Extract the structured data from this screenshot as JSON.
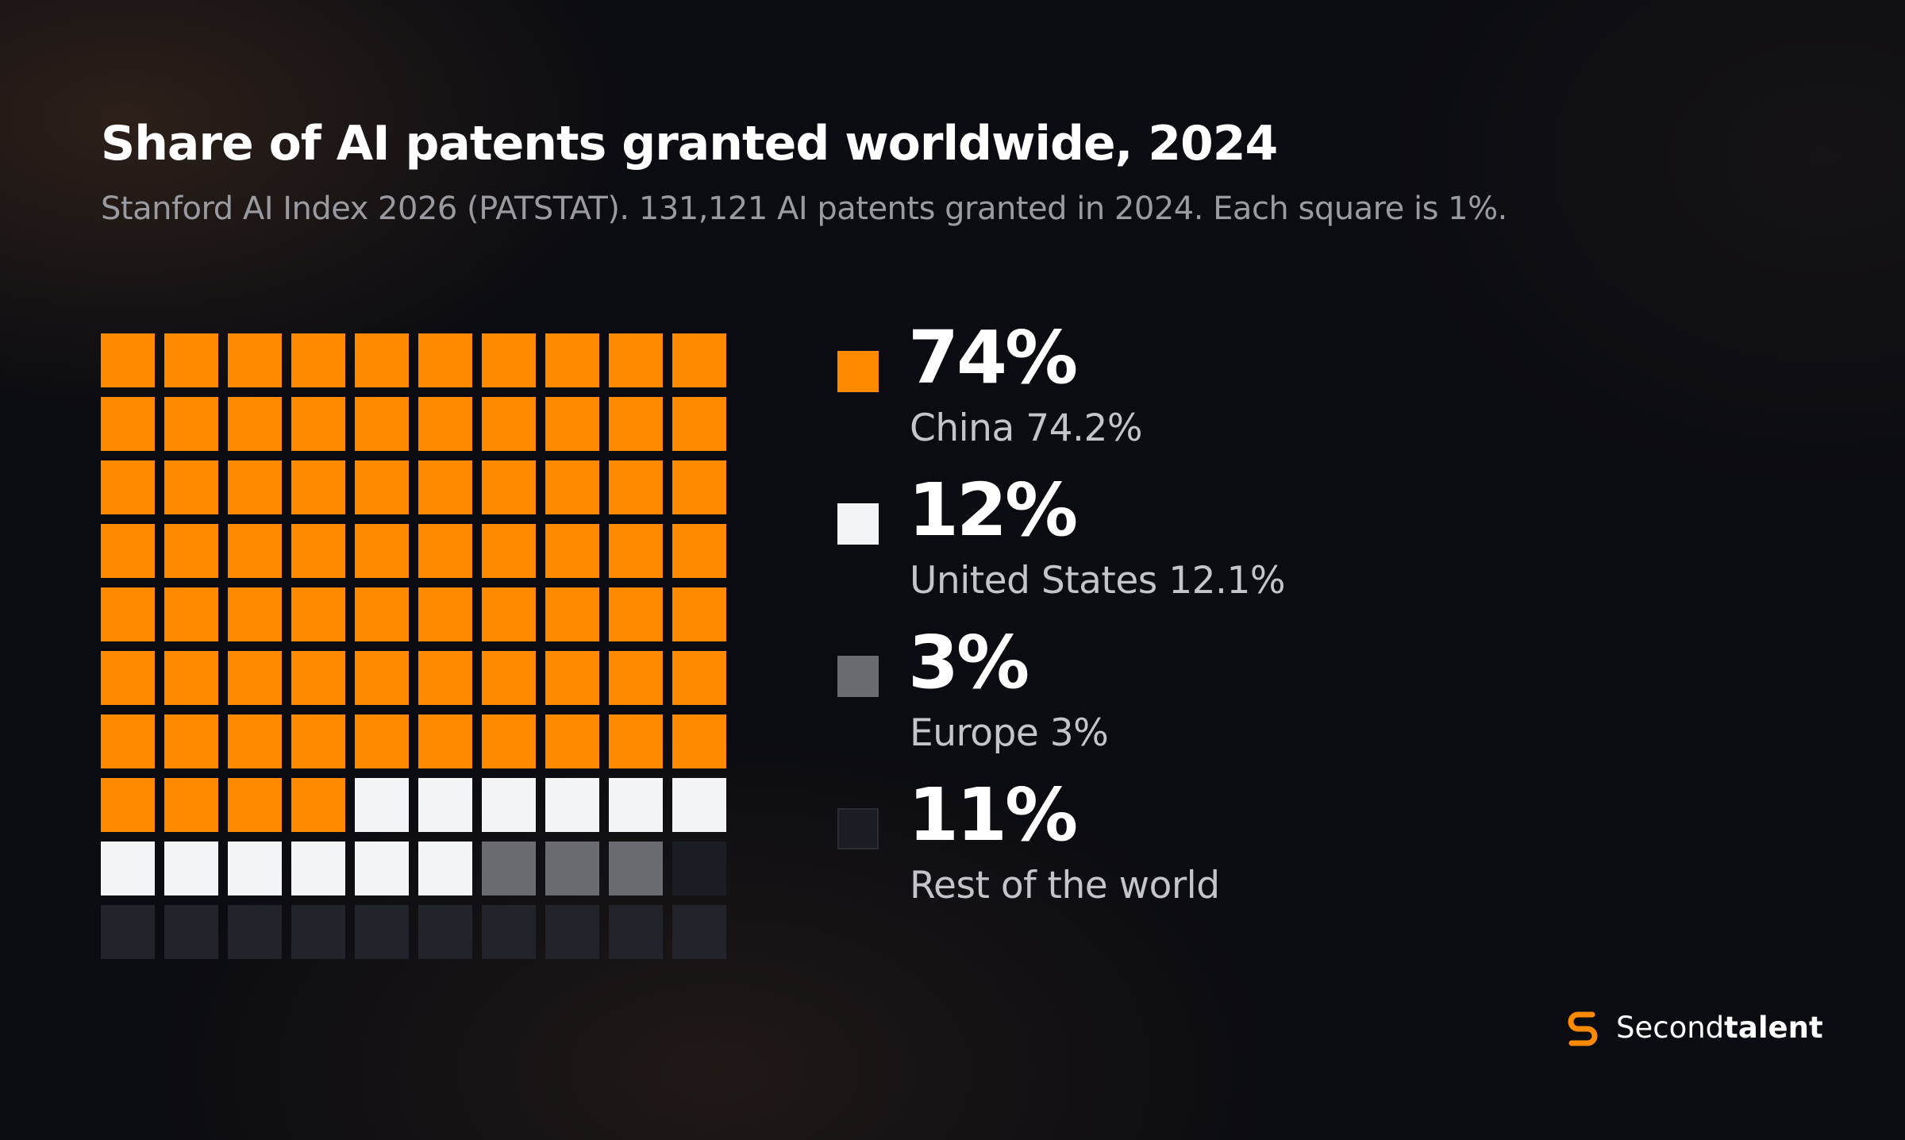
{
  "header": {
    "title": "Share of AI patents granted worldwide, 2024",
    "subtitle": "Stanford AI Index 2026 (PATSTAT). 131,121 AI patents granted in 2024. Each square is 1%."
  },
  "chart_data": {
    "type": "waffle",
    "grid": {
      "rows": 10,
      "cols": 10
    },
    "unit": "1%",
    "series": [
      {
        "name": "China",
        "squares": 74,
        "color": "#ff8a00",
        "value_label": "74%",
        "detail": "China 74.2%"
      },
      {
        "name": "United States",
        "squares": 12,
        "color": "#f3f4f6",
        "value_label": "12%",
        "detail": "United States 12.1%"
      },
      {
        "name": "Europe",
        "squares": 3,
        "color": "#6b6c72",
        "value_label": "3%",
        "detail": "Europe 3%"
      },
      {
        "name": "Rest of the world",
        "squares": 11,
        "color": "#1b1d24",
        "value_label": "11%",
        "detail": "Rest of the world"
      }
    ]
  },
  "legend": {
    "items": [
      {
        "value": "74%",
        "label": "China 74.2%",
        "color": "#ff8a00"
      },
      {
        "value": "12%",
        "label": "United States 12.1%",
        "color": "#f3f4f6"
      },
      {
        "value": "3%",
        "label": "Europe 3%",
        "color": "#6b6c72"
      },
      {
        "value": "11%",
        "label": "Rest of the world",
        "color": "#1b1d24"
      }
    ]
  },
  "brand": {
    "icon": "secondtalent-logo-icon",
    "name_light": "Second",
    "name_bold": "talent",
    "accent": "#ff8a00"
  }
}
